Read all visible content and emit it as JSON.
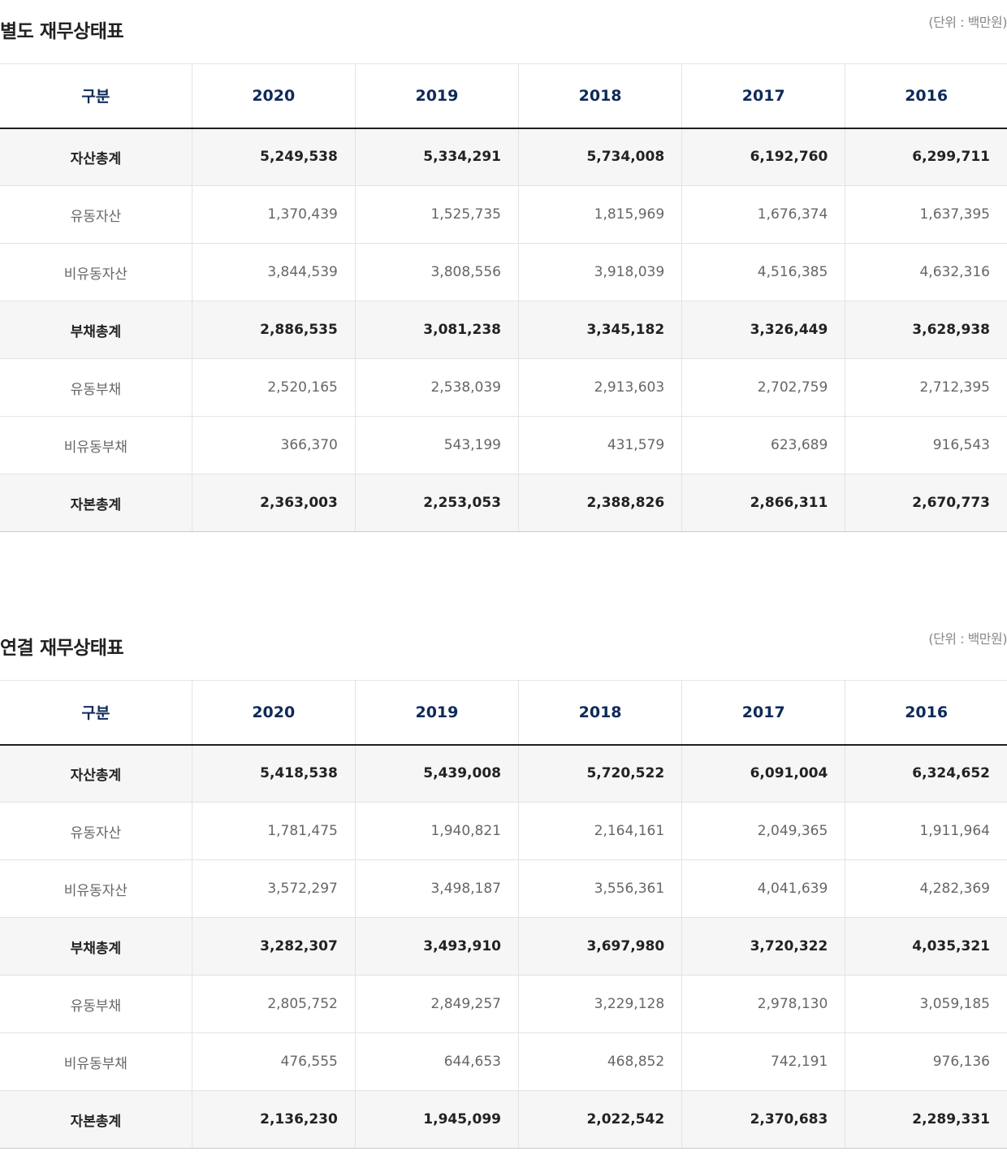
{
  "tables": [
    {
      "title": "별도 재무상태표",
      "unit": "(단위 : 백만원)",
      "headers": [
        "구분",
        "2020",
        "2019",
        "2018",
        "2017",
        "2016"
      ],
      "rows": [
        {
          "label": "자산총계",
          "total": true,
          "values": [
            "5,249,538",
            "5,334,291",
            "5,734,008",
            "6,192,760",
            "6,299,711"
          ]
        },
        {
          "label": "유동자산",
          "total": false,
          "values": [
            "1,370,439",
            "1,525,735",
            "1,815,969",
            "1,676,374",
            "1,637,395"
          ]
        },
        {
          "label": "비유동자산",
          "total": false,
          "values": [
            "3,844,539",
            "3,808,556",
            "3,918,039",
            "4,516,385",
            "4,632,316"
          ]
        },
        {
          "label": "부채총계",
          "total": true,
          "values": [
            "2,886,535",
            "3,081,238",
            "3,345,182",
            "3,326,449",
            "3,628,938"
          ]
        },
        {
          "label": "유동부채",
          "total": false,
          "values": [
            "2,520,165",
            "2,538,039",
            "2,913,603",
            "2,702,759",
            "2,712,395"
          ]
        },
        {
          "label": "비유동부채",
          "total": false,
          "values": [
            "366,370",
            "543,199",
            "431,579",
            "623,689",
            "916,543"
          ]
        },
        {
          "label": "자본총계",
          "total": true,
          "values": [
            "2,363,003",
            "2,253,053",
            "2,388,826",
            "2,866,311",
            "2,670,773"
          ]
        }
      ]
    },
    {
      "title": "연결 재무상태표",
      "unit": "(단위 : 백만원)",
      "headers": [
        "구분",
        "2020",
        "2019",
        "2018",
        "2017",
        "2016"
      ],
      "rows": [
        {
          "label": "자산총계",
          "total": true,
          "values": [
            "5,418,538",
            "5,439,008",
            "5,720,522",
            "6,091,004",
            "6,324,652"
          ]
        },
        {
          "label": "유동자산",
          "total": false,
          "values": [
            "1,781,475",
            "1,940,821",
            "2,164,161",
            "2,049,365",
            "1,911,964"
          ]
        },
        {
          "label": "비유동자산",
          "total": false,
          "values": [
            "3,572,297",
            "3,498,187",
            "3,556,361",
            "4,041,639",
            "4,282,369"
          ]
        },
        {
          "label": "부채총계",
          "total": true,
          "values": [
            "3,282,307",
            "3,493,910",
            "3,697,980",
            "3,720,322",
            "4,035,321"
          ]
        },
        {
          "label": "유동부채",
          "total": false,
          "values": [
            "2,805,752",
            "2,849,257",
            "3,229,128",
            "2,978,130",
            "3,059,185"
          ]
        },
        {
          "label": "비유동부채",
          "total": false,
          "values": [
            "476,555",
            "644,653",
            "468,852",
            "742,191",
            "976,136"
          ]
        },
        {
          "label": "자본총계",
          "total": true,
          "values": [
            "2,136,230",
            "1,945,099",
            "2,022,542",
            "2,370,683",
            "2,289,331"
          ]
        }
      ]
    }
  ]
}
